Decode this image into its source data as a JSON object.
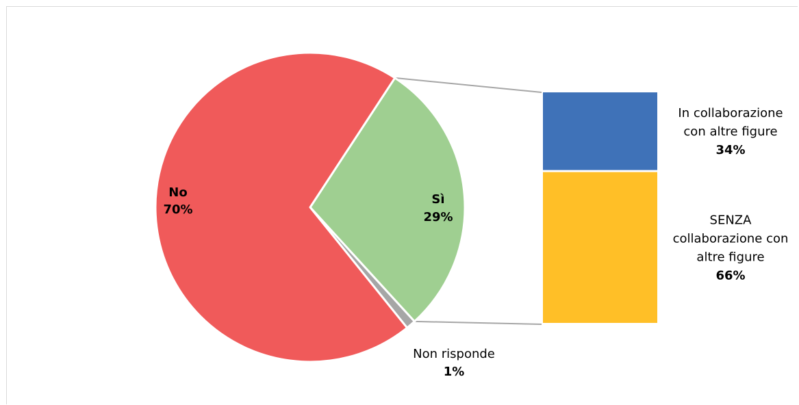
{
  "chart_data": {
    "type": "pie",
    "subtype": "bar-of-pie",
    "pie": {
      "slices": [
        {
          "label": "No",
          "value": 70,
          "value_label": "70%",
          "color": "#f05a5a"
        },
        {
          "label": "Sì",
          "value": 29,
          "value_label": "29%",
          "color": "#9fcf91"
        },
        {
          "label": "Non risponde",
          "value": 1,
          "value_label": "1%",
          "color": "#a6a6a6"
        }
      ]
    },
    "bar": {
      "parent": "Sì",
      "segments": [
        {
          "label_lines": [
            "In collaborazione",
            "con altre figure"
          ],
          "value": 34,
          "value_label": "34%",
          "color": "#3f72b8"
        },
        {
          "label_lines": [
            "SENZA",
            "collaborazione con",
            "altre figure"
          ],
          "value": 66,
          "value_label": "66%",
          "color": "#ffbf27"
        }
      ]
    },
    "connector_color": "#a6a6a6"
  }
}
